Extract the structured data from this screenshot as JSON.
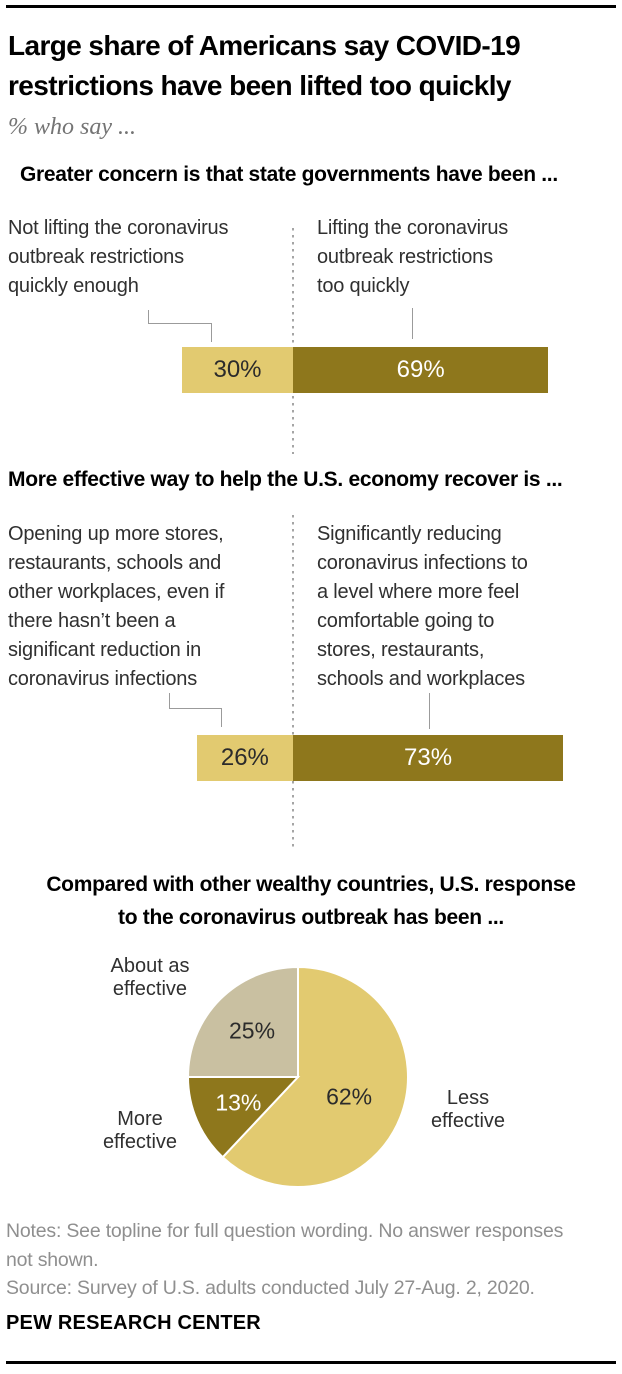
{
  "title": "Large share of Americans say COVID-19\nrestrictions have been lifted too quickly",
  "subtitle": "% who say ...",
  "colors": {
    "light_gold": "#e2ca70",
    "dark_gold": "#8e771c",
    "beige": "#c9c0a1",
    "connector_gray": "#9b9b9b",
    "note_gray": "#8f8f8f"
  },
  "chart_data": [
    {
      "type": "bar",
      "title": "Greater concern is that state governments have been ...",
      "categories": [
        "Not lifting the coronavirus\noutbreak restrictions\nquickly enough",
        "Lifting the coronavirus\noutbreak restrictions\ntoo quickly"
      ],
      "values": [
        30,
        69
      ],
      "unit": "%",
      "colors": [
        "#e2ca70",
        "#8e771c"
      ],
      "value_label_colors": [
        "#2b2b2b",
        "#ffffff"
      ]
    },
    {
      "type": "bar",
      "title": "More effective way to help the U.S. economy recover is ...",
      "categories": [
        "Opening up more stores,\nrestaurants, schools and\nother workplaces, even if\nthere hasn’t been a\nsignificant reduction in\ncoronavirus infections",
        "Significantly reducing\ncoronavirus infections to\na level where more feel\ncomfortable going to\nstores, restaurants,\nschools and workplaces"
      ],
      "values": [
        26,
        73
      ],
      "unit": "%",
      "colors": [
        "#e2ca70",
        "#8e771c"
      ],
      "value_label_colors": [
        "#2b2b2b",
        "#ffffff"
      ]
    },
    {
      "type": "pie",
      "title": "Compared with other wealthy countries, U.S. response\nto the coronavirus outbreak has been ...",
      "slices": [
        {
          "label": "Less effective",
          "callout": "Less\neffective",
          "value": 62,
          "color": "#e2ca70",
          "pct_color": "#2b2b2b"
        },
        {
          "label": "More effective",
          "callout": "More\neffective",
          "value": 13,
          "color": "#8e771c",
          "pct_color": "#ffffff"
        },
        {
          "label": "About as effective",
          "callout": "About as\neffective",
          "value": 25,
          "color": "#c9c0a1",
          "pct_color": "#2b2b2b"
        }
      ]
    }
  ],
  "footer": {
    "notes": "Notes: See topline for full question wording. No answer responses\nnot shown.",
    "source": "Source: Survey of U.S. adults conducted July 27-Aug. 2, 2020.",
    "brand": "PEW RESEARCH CENTER"
  }
}
